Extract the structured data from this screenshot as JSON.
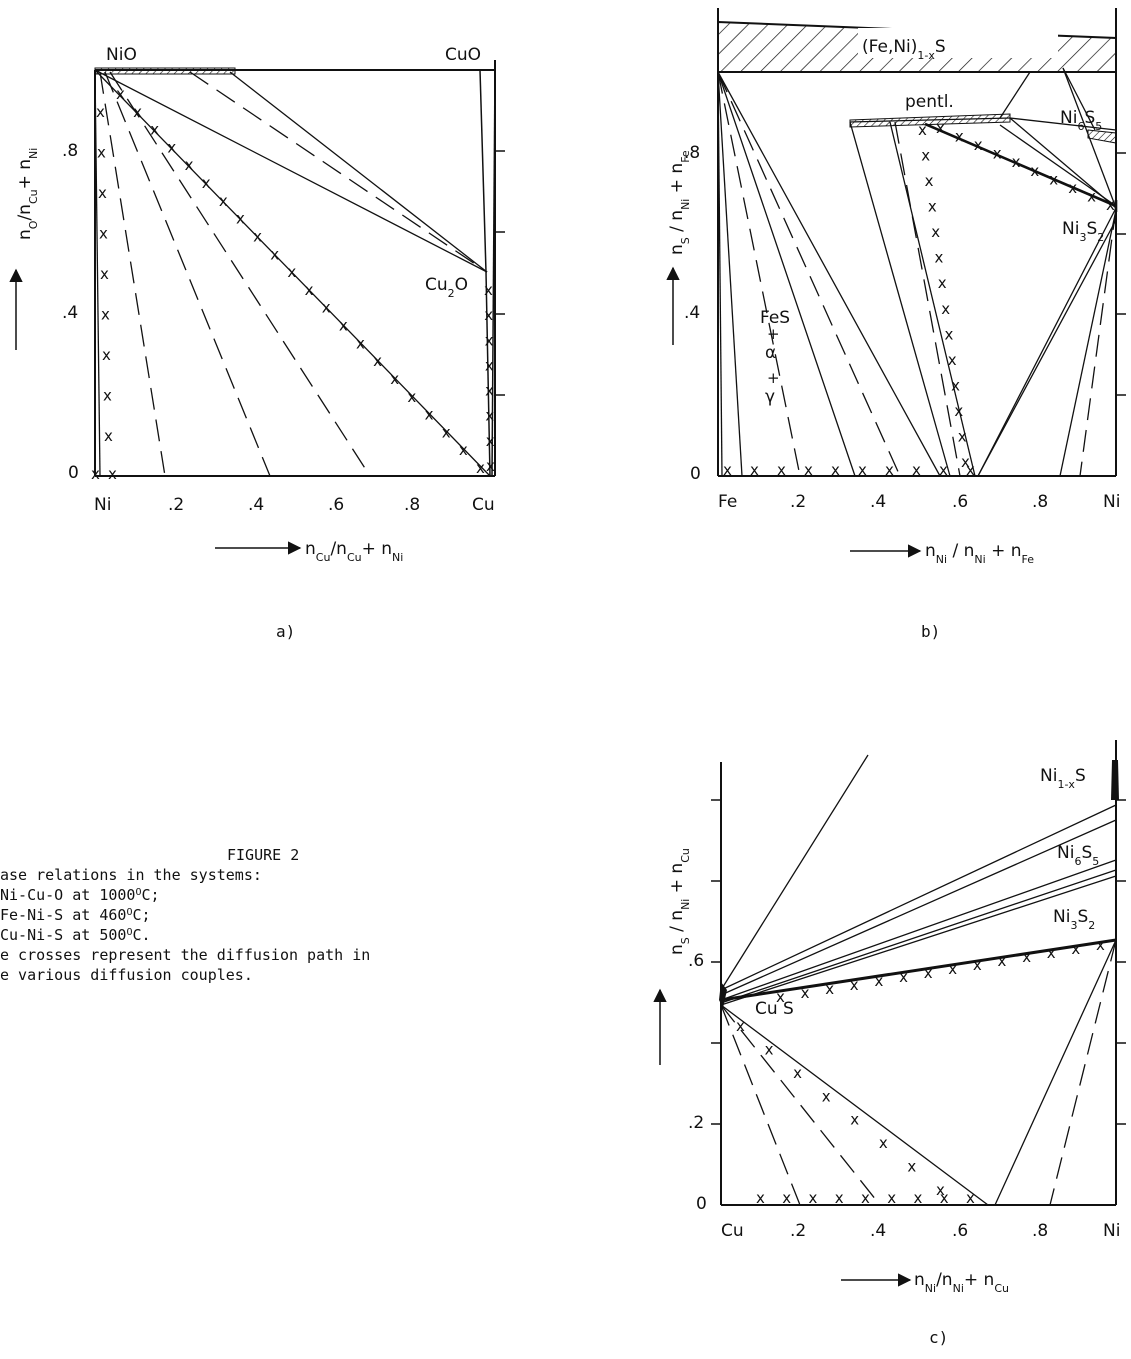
{
  "caption": {
    "title": "FIGURE 2",
    "lines": [
      "ase relations in the systems:",
      "Ni-Cu-O at 1000°C;",
      "Fe-Ni-S at 460°C;",
      "Cu-Ni-S at 500°C.",
      "e crosses represent the diffusion path in",
      "e various diffusion couples."
    ]
  },
  "panels": {
    "a": {
      "letter": "a)",
      "y_axis_label": "nO/nCu+ nNi",
      "x_axis_label": "nCu/nCu+ nNi",
      "x_ticks": [
        "Ni",
        ".2",
        ".4",
        ".6",
        ".8",
        "Cu"
      ],
      "y_ticks": [
        "0",
        ".4",
        ".8"
      ],
      "phases": [
        "NiO",
        "CuO",
        "Cu2O"
      ]
    },
    "b": {
      "letter": "b)",
      "y_axis_label": "nS/nNi+nFe",
      "x_axis_label": "nNi/nNi+nFe",
      "x_ticks": [
        "Fe",
        ".2",
        ".4",
        ".6",
        ".8",
        "Ni"
      ],
      "y_ticks": [
        "0",
        ".4",
        ".8"
      ],
      "phases": [
        "(Fe,Ni)1-xS",
        "pentl.",
        "Ni6S5",
        "Ni3S2",
        "FeS",
        "+",
        "α",
        "+",
        "γ"
      ]
    },
    "c": {
      "letter": "c)",
      "y_axis_label": "nS/nNi+nCu",
      "x_axis_label": "nNi/nNi+nCu",
      "x_ticks": [
        "Cu",
        ".2",
        ".4",
        ".6",
        ".8",
        "Ni"
      ],
      "y_ticks": [
        "0",
        ".2",
        ".6"
      ],
      "phases": [
        "Ni1-xS",
        "Ni6S5",
        "Ni3S2",
        "Cu S"
      ]
    }
  }
}
